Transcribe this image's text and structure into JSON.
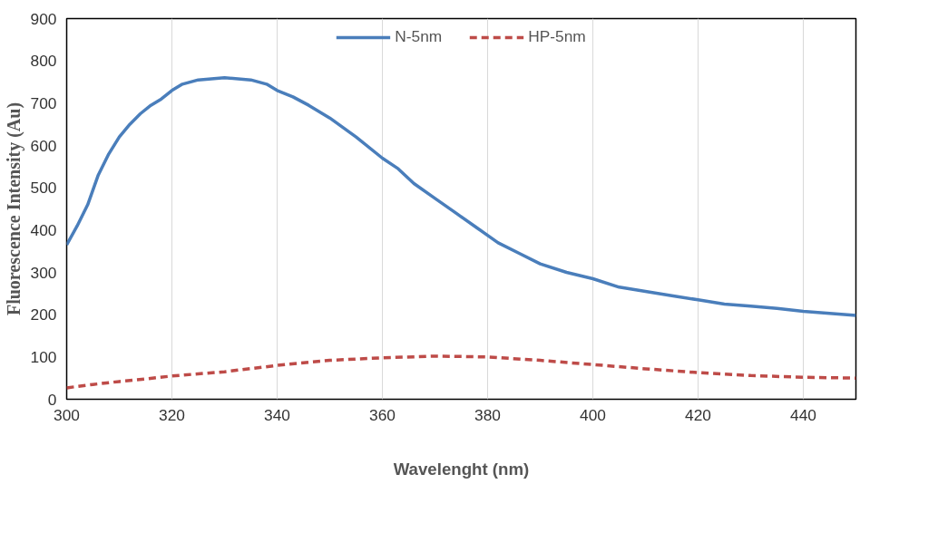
{
  "chart_data": {
    "type": "line",
    "xlabel": "Wavelenght (nm)",
    "ylabel": "Fluorescence Intensity (Au)",
    "xlim": [
      300,
      450
    ],
    "xticks": [
      300,
      320,
      340,
      360,
      380,
      400,
      420,
      440
    ],
    "ylim": [
      0,
      900
    ],
    "yticks": [
      0,
      100,
      200,
      300,
      400,
      500,
      600,
      700,
      800,
      900
    ],
    "grid": "x",
    "legend": "top",
    "marker": "none",
    "series": [
      {
        "name": "N-5nm",
        "color": "#4a7ebb",
        "line_style": "solid",
        "x": [
          300,
          302,
          304,
          306,
          308,
          310,
          312,
          314,
          316,
          318,
          320,
          322,
          325,
          330,
          335,
          338,
          340,
          343,
          346,
          350,
          355,
          360,
          363,
          366,
          370,
          374,
          378,
          382,
          386,
          390,
          395,
          400,
          405,
          410,
          415,
          420,
          425,
          430,
          435,
          440,
          445,
          450
        ],
        "values": [
          365,
          410,
          460,
          530,
          580,
          620,
          650,
          675,
          695,
          710,
          730,
          745,
          755,
          760,
          755,
          745,
          730,
          715,
          695,
          665,
          620,
          570,
          545,
          510,
          475,
          440,
          405,
          370,
          345,
          320,
          300,
          285,
          265,
          255,
          245,
          235,
          225,
          220,
          215,
          208,
          203,
          198
        ]
      },
      {
        "name": "HP-5nm",
        "color": "#be4b48",
        "line_style": "dashed",
        "x": [
          300,
          305,
          310,
          315,
          320,
          330,
          340,
          350,
          360,
          370,
          380,
          390,
          400,
          410,
          420,
          430,
          440,
          450
        ],
        "values": [
          27,
          35,
          42,
          48,
          55,
          65,
          80,
          92,
          98,
          102,
          100,
          92,
          82,
          72,
          63,
          56,
          52,
          50
        ]
      }
    ]
  }
}
